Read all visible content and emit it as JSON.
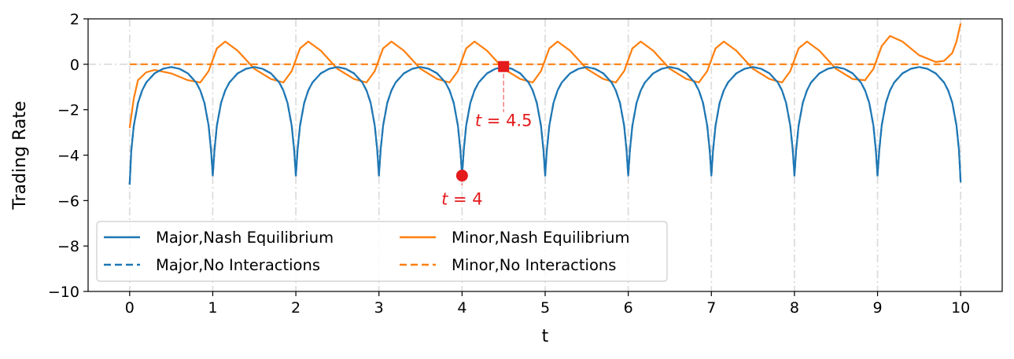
{
  "chart_data": {
    "type": "line",
    "title": "",
    "xlabel": "t",
    "ylabel": "Trading Rate",
    "xlim": [
      -0.5,
      10.5
    ],
    "ylim": [
      -10,
      2
    ],
    "xticks": [
      0,
      1,
      2,
      3,
      4,
      5,
      6,
      7,
      8,
      9,
      10
    ],
    "yticks": [
      -10,
      -8,
      -6,
      -4,
      -2,
      0,
      2
    ],
    "xtick_labels": [
      "0",
      "1",
      "2",
      "3",
      "4",
      "5",
      "6",
      "7",
      "8",
      "9",
      "10"
    ],
    "ytick_labels": [
      "−10",
      "−8",
      "−6",
      "−4",
      "−2",
      "0",
      "2"
    ],
    "grid": "dash-dot",
    "legend_position": "lower-left",
    "series": [
      {
        "name": "Major,Nash Equilibrium",
        "style": "solid",
        "color": "#1f77b4",
        "x": [
          0,
          0.02,
          0.05,
          0.1,
          0.15,
          0.2,
          0.3,
          0.4,
          0.5,
          0.6,
          0.7,
          0.8,
          0.85,
          0.9,
          0.95,
          0.98,
          1.0,
          1.02,
          1.05,
          1.1,
          1.15,
          1.2,
          1.3,
          1.4,
          1.5,
          1.6,
          1.7,
          1.8,
          1.85,
          1.9,
          1.95,
          1.98,
          2.0,
          2.02,
          2.05,
          2.1,
          2.15,
          2.2,
          2.3,
          2.4,
          2.5,
          2.6,
          2.7,
          2.8,
          2.85,
          2.9,
          2.95,
          2.98,
          3.0,
          3.02,
          3.05,
          3.1,
          3.15,
          3.2,
          3.3,
          3.4,
          3.5,
          3.6,
          3.7,
          3.8,
          3.85,
          3.9,
          3.95,
          3.98,
          4.0,
          4.02,
          4.05,
          4.1,
          4.15,
          4.2,
          4.3,
          4.4,
          4.5,
          4.6,
          4.7,
          4.8,
          4.85,
          4.9,
          4.95,
          4.98,
          5.0,
          5.02,
          5.05,
          5.1,
          5.15,
          5.2,
          5.3,
          5.4,
          5.5,
          5.6,
          5.7,
          5.8,
          5.85,
          5.9,
          5.95,
          5.98,
          6.0,
          6.02,
          6.05,
          6.1,
          6.15,
          6.2,
          6.3,
          6.4,
          6.5,
          6.6,
          6.7,
          6.8,
          6.85,
          6.9,
          6.95,
          6.98,
          7.0,
          7.02,
          7.05,
          7.1,
          7.15,
          7.2,
          7.3,
          7.4,
          7.5,
          7.6,
          7.7,
          7.8,
          7.85,
          7.9,
          7.95,
          7.98,
          8.0,
          8.02,
          8.05,
          8.1,
          8.15,
          8.2,
          8.3,
          8.4,
          8.5,
          8.6,
          8.7,
          8.8,
          8.85,
          8.9,
          8.95,
          8.98,
          9.0,
          9.02,
          9.05,
          9.1,
          9.15,
          9.2,
          9.3,
          9.4,
          9.5,
          9.6,
          9.7,
          9.8,
          9.85,
          9.9,
          9.95,
          9.98,
          10.0
        ],
        "y": [
          -5.3,
          -3.8,
          -2.7,
          -1.7,
          -1.15,
          -0.8,
          -0.4,
          -0.2,
          -0.12,
          -0.2,
          -0.4,
          -0.8,
          -1.15,
          -1.7,
          -2.7,
          -3.8,
          -4.9,
          -3.8,
          -2.7,
          -1.7,
          -1.15,
          -0.8,
          -0.4,
          -0.2,
          -0.12,
          -0.2,
          -0.4,
          -0.8,
          -1.15,
          -1.7,
          -2.7,
          -3.8,
          -4.9,
          -3.8,
          -2.7,
          -1.7,
          -1.15,
          -0.8,
          -0.4,
          -0.2,
          -0.12,
          -0.2,
          -0.4,
          -0.8,
          -1.15,
          -1.7,
          -2.7,
          -3.8,
          -4.9,
          -3.8,
          -2.7,
          -1.7,
          -1.15,
          -0.8,
          -0.4,
          -0.2,
          -0.12,
          -0.2,
          -0.4,
          -0.8,
          -1.15,
          -1.7,
          -2.7,
          -3.8,
          -4.9,
          -3.8,
          -2.7,
          -1.7,
          -1.15,
          -0.8,
          -0.4,
          -0.2,
          -0.12,
          -0.2,
          -0.4,
          -0.8,
          -1.15,
          -1.7,
          -2.7,
          -3.8,
          -4.9,
          -3.8,
          -2.7,
          -1.7,
          -1.15,
          -0.8,
          -0.4,
          -0.2,
          -0.12,
          -0.2,
          -0.4,
          -0.8,
          -1.15,
          -1.7,
          -2.7,
          -3.8,
          -4.9,
          -3.8,
          -2.7,
          -1.7,
          -1.15,
          -0.8,
          -0.4,
          -0.2,
          -0.12,
          -0.2,
          -0.4,
          -0.8,
          -1.15,
          -1.7,
          -2.7,
          -3.8,
          -4.9,
          -3.8,
          -2.7,
          -1.7,
          -1.15,
          -0.8,
          -0.4,
          -0.2,
          -0.12,
          -0.2,
          -0.4,
          -0.8,
          -1.15,
          -1.7,
          -2.7,
          -3.8,
          -4.9,
          -3.8,
          -2.7,
          -1.7,
          -1.15,
          -0.8,
          -0.4,
          -0.2,
          -0.12,
          -0.2,
          -0.4,
          -0.8,
          -1.15,
          -1.7,
          -2.7,
          -3.8,
          -4.9,
          -3.8,
          -2.7,
          -1.7,
          -1.15,
          -0.8,
          -0.4,
          -0.2,
          -0.12,
          -0.2,
          -0.4,
          -0.8,
          -1.15,
          -1.7,
          -2.7,
          -3.8,
          -5.2
        ]
      },
      {
        "name": "Major,No Interactions",
        "style": "dashed",
        "color": "#1f77b4",
        "x": [
          0,
          0.02,
          0.05,
          0.1,
          0.15,
          0.2,
          0.3,
          0.4,
          0.5,
          0.6,
          0.7,
          0.8,
          0.85,
          0.9,
          0.95,
          0.98,
          1.0,
          1.02,
          1.05,
          1.1,
          1.15,
          1.2,
          1.3,
          1.4,
          1.5,
          1.6,
          1.7,
          1.8,
          1.85,
          1.9,
          1.95,
          1.98,
          2.0,
          2.02,
          2.05,
          2.1,
          2.15,
          2.2,
          2.3,
          2.4,
          2.5,
          2.6,
          2.7,
          2.8,
          2.85,
          2.9,
          2.95,
          2.98,
          3.0,
          3.02,
          3.05,
          3.1,
          3.15,
          3.2,
          3.3,
          3.4,
          3.5,
          3.6,
          3.7,
          3.8,
          3.85,
          3.9,
          3.95,
          3.98,
          4.0,
          4.02,
          4.05,
          4.1,
          4.15,
          4.2,
          4.3,
          4.4,
          4.5,
          4.6,
          4.7,
          4.8,
          4.85,
          4.9,
          4.95,
          4.98,
          5.0,
          5.02,
          5.05,
          5.1,
          5.15,
          5.2,
          5.3,
          5.4,
          5.5,
          5.6,
          5.7,
          5.8,
          5.85,
          5.9,
          5.95,
          5.98,
          6.0,
          6.02,
          6.05,
          6.1,
          6.15,
          6.2,
          6.3,
          6.4,
          6.5,
          6.6,
          6.7,
          6.8,
          6.85,
          6.9,
          6.95,
          6.98,
          7.0,
          7.02,
          7.05,
          7.1,
          7.15,
          7.2,
          7.3,
          7.4,
          7.5,
          7.6,
          7.7,
          7.8,
          7.85,
          7.9,
          7.95,
          7.98,
          8.0,
          8.02,
          8.05,
          8.1,
          8.15,
          8.2,
          8.3,
          8.4,
          8.5,
          8.6,
          8.7,
          8.8,
          8.85,
          8.9,
          8.95,
          8.98,
          9.0,
          9.02,
          9.05,
          9.1,
          9.15,
          9.2,
          9.3,
          9.4,
          9.5,
          9.6,
          9.7,
          9.8,
          9.85,
          9.9,
          9.95,
          9.98,
          10.0
        ],
        "y": [
          -5.3,
          -3.8,
          -2.7,
          -1.7,
          -1.15,
          -0.8,
          -0.4,
          -0.2,
          -0.12,
          -0.2,
          -0.4,
          -0.8,
          -1.15,
          -1.7,
          -2.7,
          -3.8,
          -4.9,
          -3.8,
          -2.7,
          -1.7,
          -1.15,
          -0.8,
          -0.4,
          -0.2,
          -0.12,
          -0.2,
          -0.4,
          -0.8,
          -1.15,
          -1.7,
          -2.7,
          -3.8,
          -4.9,
          -3.8,
          -2.7,
          -1.7,
          -1.15,
          -0.8,
          -0.4,
          -0.2,
          -0.12,
          -0.2,
          -0.4,
          -0.8,
          -1.15,
          -1.7,
          -2.7,
          -3.8,
          -4.9,
          -3.8,
          -2.7,
          -1.7,
          -1.15,
          -0.8,
          -0.4,
          -0.2,
          -0.12,
          -0.2,
          -0.4,
          -0.8,
          -1.15,
          -1.7,
          -2.7,
          -3.8,
          -4.9,
          -3.8,
          -2.7,
          -1.7,
          -1.15,
          -0.8,
          -0.4,
          -0.2,
          -0.12,
          -0.2,
          -0.4,
          -0.8,
          -1.15,
          -1.7,
          -2.7,
          -3.8,
          -4.9,
          -3.8,
          -2.7,
          -1.7,
          -1.15,
          -0.8,
          -0.4,
          -0.2,
          -0.12,
          -0.2,
          -0.4,
          -0.8,
          -1.15,
          -1.7,
          -2.7,
          -3.8,
          -4.9,
          -3.8,
          -2.7,
          -1.7,
          -1.15,
          -0.8,
          -0.4,
          -0.2,
          -0.12,
          -0.2,
          -0.4,
          -0.8,
          -1.15,
          -1.7,
          -2.7,
          -3.8,
          -4.9,
          -3.8,
          -2.7,
          -1.7,
          -1.15,
          -0.8,
          -0.4,
          -0.2,
          -0.12,
          -0.2,
          -0.4,
          -0.8,
          -1.15,
          -1.7,
          -2.7,
          -3.8,
          -4.9,
          -3.8,
          -2.7,
          -1.7,
          -1.15,
          -0.8,
          -0.4,
          -0.2,
          -0.12,
          -0.2,
          -0.4,
          -0.8,
          -1.15,
          -1.7,
          -2.7,
          -3.8,
          -4.9,
          -3.8,
          -2.7,
          -1.7,
          -1.15,
          -0.8,
          -0.4,
          -0.2,
          -0.12,
          -0.2,
          -0.4,
          -0.8,
          -1.15,
          -1.7,
          -2.7,
          -3.8,
          -5.2
        ]
      },
      {
        "name": "Minor,Nash Equilibrium",
        "style": "solid",
        "color": "#ff7f0e",
        "x": [
          0,
          0.05,
          0.1,
          0.2,
          0.3,
          0.5,
          0.7,
          0.85,
          0.95,
          1.05,
          1.15,
          1.3,
          1.5,
          1.7,
          1.85,
          1.95,
          2.05,
          2.15,
          2.3,
          2.5,
          2.7,
          2.85,
          2.95,
          3.05,
          3.15,
          3.3,
          3.5,
          3.7,
          3.85,
          3.95,
          4.05,
          4.15,
          4.3,
          4.5,
          4.7,
          4.85,
          4.95,
          5.05,
          5.15,
          5.3,
          5.5,
          5.7,
          5.85,
          5.95,
          6.05,
          6.15,
          6.3,
          6.5,
          6.7,
          6.85,
          6.95,
          7.05,
          7.15,
          7.3,
          7.5,
          7.7,
          7.85,
          7.95,
          8.05,
          8.15,
          8.3,
          8.5,
          8.7,
          8.85,
          8.95,
          9.05,
          9.15,
          9.3,
          9.5,
          9.7,
          9.8,
          9.9,
          9.95,
          10.0
        ],
        "y": [
          -2.8,
          -1.5,
          -0.7,
          -0.35,
          -0.25,
          -0.4,
          -0.7,
          -0.8,
          -0.3,
          0.7,
          1.0,
          0.6,
          -0.2,
          -0.65,
          -0.8,
          -0.3,
          0.7,
          1.0,
          0.6,
          -0.2,
          -0.65,
          -0.8,
          -0.3,
          0.7,
          1.0,
          0.6,
          -0.2,
          -0.65,
          -0.8,
          -0.3,
          0.7,
          1.0,
          0.6,
          -0.2,
          -0.65,
          -0.8,
          -0.3,
          0.7,
          1.0,
          0.6,
          -0.2,
          -0.65,
          -0.8,
          -0.3,
          0.7,
          1.0,
          0.6,
          -0.2,
          -0.65,
          -0.8,
          -0.3,
          0.7,
          1.0,
          0.6,
          -0.2,
          -0.65,
          -0.8,
          -0.3,
          0.7,
          1.0,
          0.6,
          -0.2,
          -0.65,
          -0.7,
          -0.2,
          0.8,
          1.25,
          1.0,
          0.4,
          0.1,
          0.15,
          0.5,
          1.0,
          1.8
        ]
      },
      {
        "name": "Minor,No Interactions",
        "style": "dashed",
        "color": "#ff7f0e",
        "x": [
          0,
          10
        ],
        "y": [
          0,
          0
        ]
      }
    ],
    "annotations": [
      {
        "label": "$t=4$",
        "text_main": "t",
        "text_rest": " = 4",
        "marker": "circle",
        "x": 4.0,
        "y": -4.9,
        "color": "#e41a1c"
      },
      {
        "label": "$t=4.5$",
        "text_main": "t",
        "text_rest": " = 4.5",
        "marker": "square",
        "x": 4.5,
        "y": -0.1,
        "color": "#e41a1c"
      }
    ]
  }
}
